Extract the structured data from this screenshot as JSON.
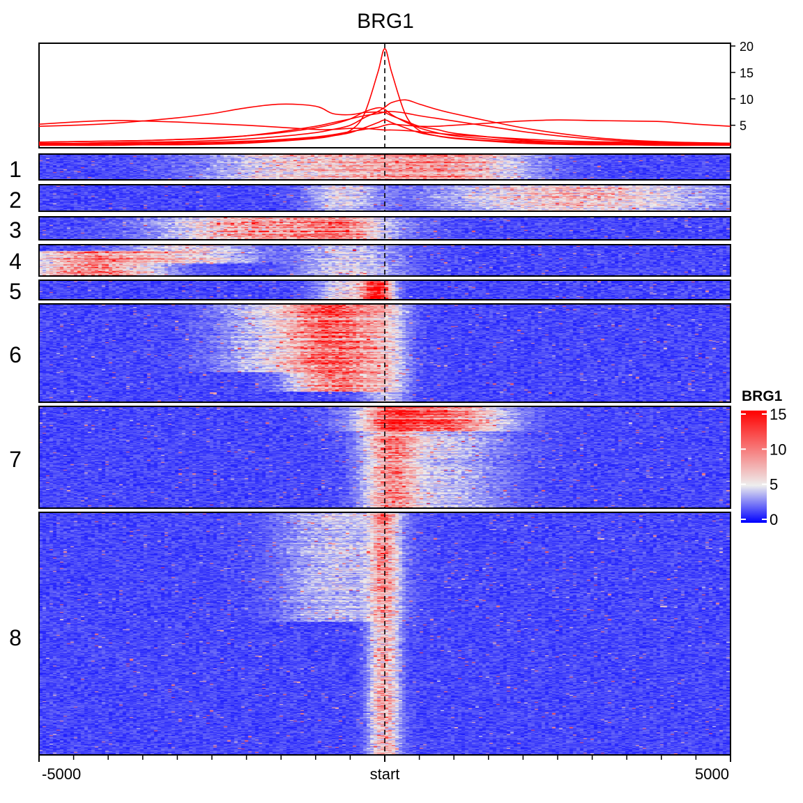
{
  "title": "BRG1",
  "chart_data": {
    "type": "heatmap",
    "title": "BRG1",
    "x_axis": {
      "range": [
        -5000,
        5000
      ],
      "tick_labels": [
        {
          "value": -5000,
          "label": "-5000"
        },
        {
          "value": 0,
          "label": "start"
        },
        {
          "value": 5000,
          "label": "5000"
        }
      ],
      "minor_tick_step": 500,
      "reference_line": {
        "value": 0,
        "style": "dashed"
      }
    },
    "profile_plot": {
      "type": "line",
      "y_axis": {
        "range": [
          1,
          20
        ],
        "ticks": [
          5,
          10,
          15,
          20
        ],
        "position": "right"
      },
      "line_color": "#ff0000",
      "positions": [
        -5000,
        -4500,
        -4000,
        -3500,
        -3000,
        -2500,
        -2000,
        -1500,
        -1000,
        -750,
        -500,
        -300,
        -100,
        0,
        100,
        300,
        500,
        750,
        1000,
        1500,
        2000,
        2500,
        3000,
        3500,
        4000,
        4500,
        5000
      ],
      "series": [
        {
          "cluster": "1",
          "values": [
            1.8,
            1.9,
            2.0,
            2.1,
            2.3,
            2.5,
            3.0,
            3.8,
            4.8,
            5.5,
            6.2,
            6.8,
            7.2,
            7.5,
            7.6,
            7.3,
            6.8,
            6.3,
            5.8,
            4.8,
            3.8,
            3.0,
            2.4,
            2.0,
            1.8,
            1.7,
            1.6
          ]
        },
        {
          "cluster": "2",
          "values": [
            1.5,
            1.5,
            1.6,
            1.6,
            1.7,
            1.8,
            2.0,
            2.3,
            2.8,
            3.2,
            3.8,
            4.2,
            4.6,
            5.0,
            5.2,
            5.0,
            4.8,
            4.8,
            5.0,
            5.4,
            5.8,
            6.0,
            5.9,
            5.8,
            5.7,
            5.2,
            4.8
          ]
        },
        {
          "cluster": "3",
          "values": [
            4.8,
            5.0,
            5.3,
            5.8,
            6.4,
            7.2,
            8.3,
            9.0,
            8.6,
            7.2,
            7.0,
            7.4,
            7.5,
            7.4,
            6.8,
            5.8,
            4.8,
            4.2,
            3.5,
            2.8,
            2.2,
            1.8,
            1.6,
            1.5,
            1.5,
            1.5,
            1.5
          ]
        },
        {
          "cluster": "4",
          "values": [
            5.2,
            5.6,
            5.9,
            5.8,
            5.6,
            5.3,
            5.0,
            4.6,
            4.2,
            4.2,
            4.4,
            4.4,
            4.2,
            4.1,
            4.1,
            4.0,
            3.8,
            3.5,
            3.2,
            2.8,
            2.4,
            2.1,
            1.9,
            1.8,
            1.7,
            1.6,
            1.5
          ]
        },
        {
          "cluster": "5",
          "values": [
            1.2,
            1.2,
            1.2,
            1.3,
            1.3,
            1.4,
            1.6,
            2.0,
            2.5,
            3.0,
            4.0,
            7.0,
            15.0,
            19.5,
            15.0,
            7.0,
            4.0,
            3.0,
            2.5,
            2.0,
            1.6,
            1.4,
            1.3,
            1.3,
            1.2,
            1.2,
            1.2
          ]
        },
        {
          "cluster": "6",
          "values": [
            1.8,
            1.9,
            2.0,
            2.1,
            2.3,
            2.6,
            3.0,
            3.6,
            4.5,
            5.2,
            6.2,
            7.5,
            8.3,
            8.0,
            7.0,
            5.6,
            4.5,
            3.6,
            3.0,
            2.4,
            2.0,
            1.8,
            1.7,
            1.6,
            1.6,
            1.5,
            1.5
          ]
        },
        {
          "cluster": "7",
          "values": [
            1.6,
            1.6,
            1.7,
            1.8,
            1.9,
            2.1,
            2.4,
            2.9,
            3.6,
            4.2,
            5.0,
            6.4,
            7.6,
            8.4,
            9.3,
            9.8,
            9.0,
            8.0,
            7.2,
            5.8,
            4.5,
            3.5,
            2.7,
            2.2,
            1.9,
            1.7,
            1.6
          ]
        },
        {
          "cluster": "8",
          "values": [
            1.3,
            1.3,
            1.4,
            1.4,
            1.5,
            1.6,
            1.8,
            2.1,
            2.6,
            3.0,
            3.6,
            4.5,
            5.5,
            6.0,
            5.5,
            4.5,
            3.6,
            3.0,
            2.6,
            2.1,
            1.8,
            1.6,
            1.5,
            1.4,
            1.4,
            1.3,
            1.3
          ]
        }
      ]
    },
    "clusters": [
      {
        "label": "1",
        "rows": 35,
        "signal": [
          {
            "x": -900,
            "w": 1500,
            "a": 5,
            "y0": 0,
            "y1": 1
          },
          {
            "x": 900,
            "w": 1100,
            "a": 6,
            "y0": 0,
            "y1": 1
          }
        ]
      },
      {
        "label": "2",
        "rows": 36,
        "signal": [
          {
            "x": 2800,
            "w": 1800,
            "a": 5,
            "y0": 0,
            "y1": 1
          },
          {
            "x": -600,
            "w": 500,
            "a": 3,
            "y0": 0,
            "y1": 1
          }
        ]
      },
      {
        "label": "3",
        "rows": 30,
        "signal": [
          {
            "x": -1600,
            "w": 1400,
            "a": 7,
            "y0": 0,
            "y1": 1
          },
          {
            "x": -600,
            "w": 500,
            "a": 4,
            "y0": 0,
            "y1": 1
          }
        ]
      },
      {
        "label": "4",
        "rows": 40,
        "signal": [
          {
            "x": -4200,
            "w": 900,
            "a": 7,
            "y0": 0.2,
            "y1": 1
          },
          {
            "x": -2800,
            "w": 900,
            "a": 4,
            "y0": 0,
            "y1": 0.6
          },
          {
            "x": -500,
            "w": 700,
            "a": 3,
            "y0": 0,
            "y1": 1
          }
        ]
      },
      {
        "label": "5",
        "rows": 26,
        "signal": [
          {
            "x": -100,
            "w": 180,
            "a": 14,
            "y0": 0,
            "y1": 1
          },
          {
            "x": -500,
            "w": 450,
            "a": 4,
            "y0": 0,
            "y1": 1
          }
        ]
      },
      {
        "label": "6",
        "rows": 130,
        "signal": [
          {
            "x": -700,
            "w": 600,
            "a": 8,
            "y0": 0,
            "y1": 0.9
          },
          {
            "x": -1500,
            "w": 900,
            "a": 3,
            "y0": 0,
            "y1": 0.7
          },
          {
            "x": 0,
            "w": 300,
            "a": 3,
            "y0": 0,
            "y1": 1
          }
        ]
      },
      {
        "label": "7",
        "rows": 140,
        "signal": [
          {
            "x": 700,
            "w": 900,
            "a": 7,
            "y0": 0,
            "y1": 0.25
          },
          {
            "x": 100,
            "w": 350,
            "a": 6,
            "y0": 0,
            "y1": 1
          },
          {
            "x": 800,
            "w": 900,
            "a": 2.5,
            "y0": 0,
            "y1": 1
          }
        ]
      },
      {
        "label": "8",
        "rows": 330,
        "signal": [
          {
            "x": 0,
            "w": 200,
            "a": 6,
            "y0": 0,
            "y1": 1
          },
          {
            "x": -700,
            "w": 800,
            "a": 2.5,
            "y0": 0,
            "y1": 0.45
          }
        ]
      }
    ],
    "color_scale": {
      "title": "BRG1",
      "min": 0,
      "max": 15,
      "ticks": [
        0,
        5,
        10,
        15
      ],
      "stops": [
        {
          "value": 0,
          "color": "#0000ff"
        },
        {
          "value": 5,
          "color": "#eeeeee"
        },
        {
          "value": 15,
          "color": "#ff0000"
        }
      ],
      "legend_position": "right"
    }
  }
}
